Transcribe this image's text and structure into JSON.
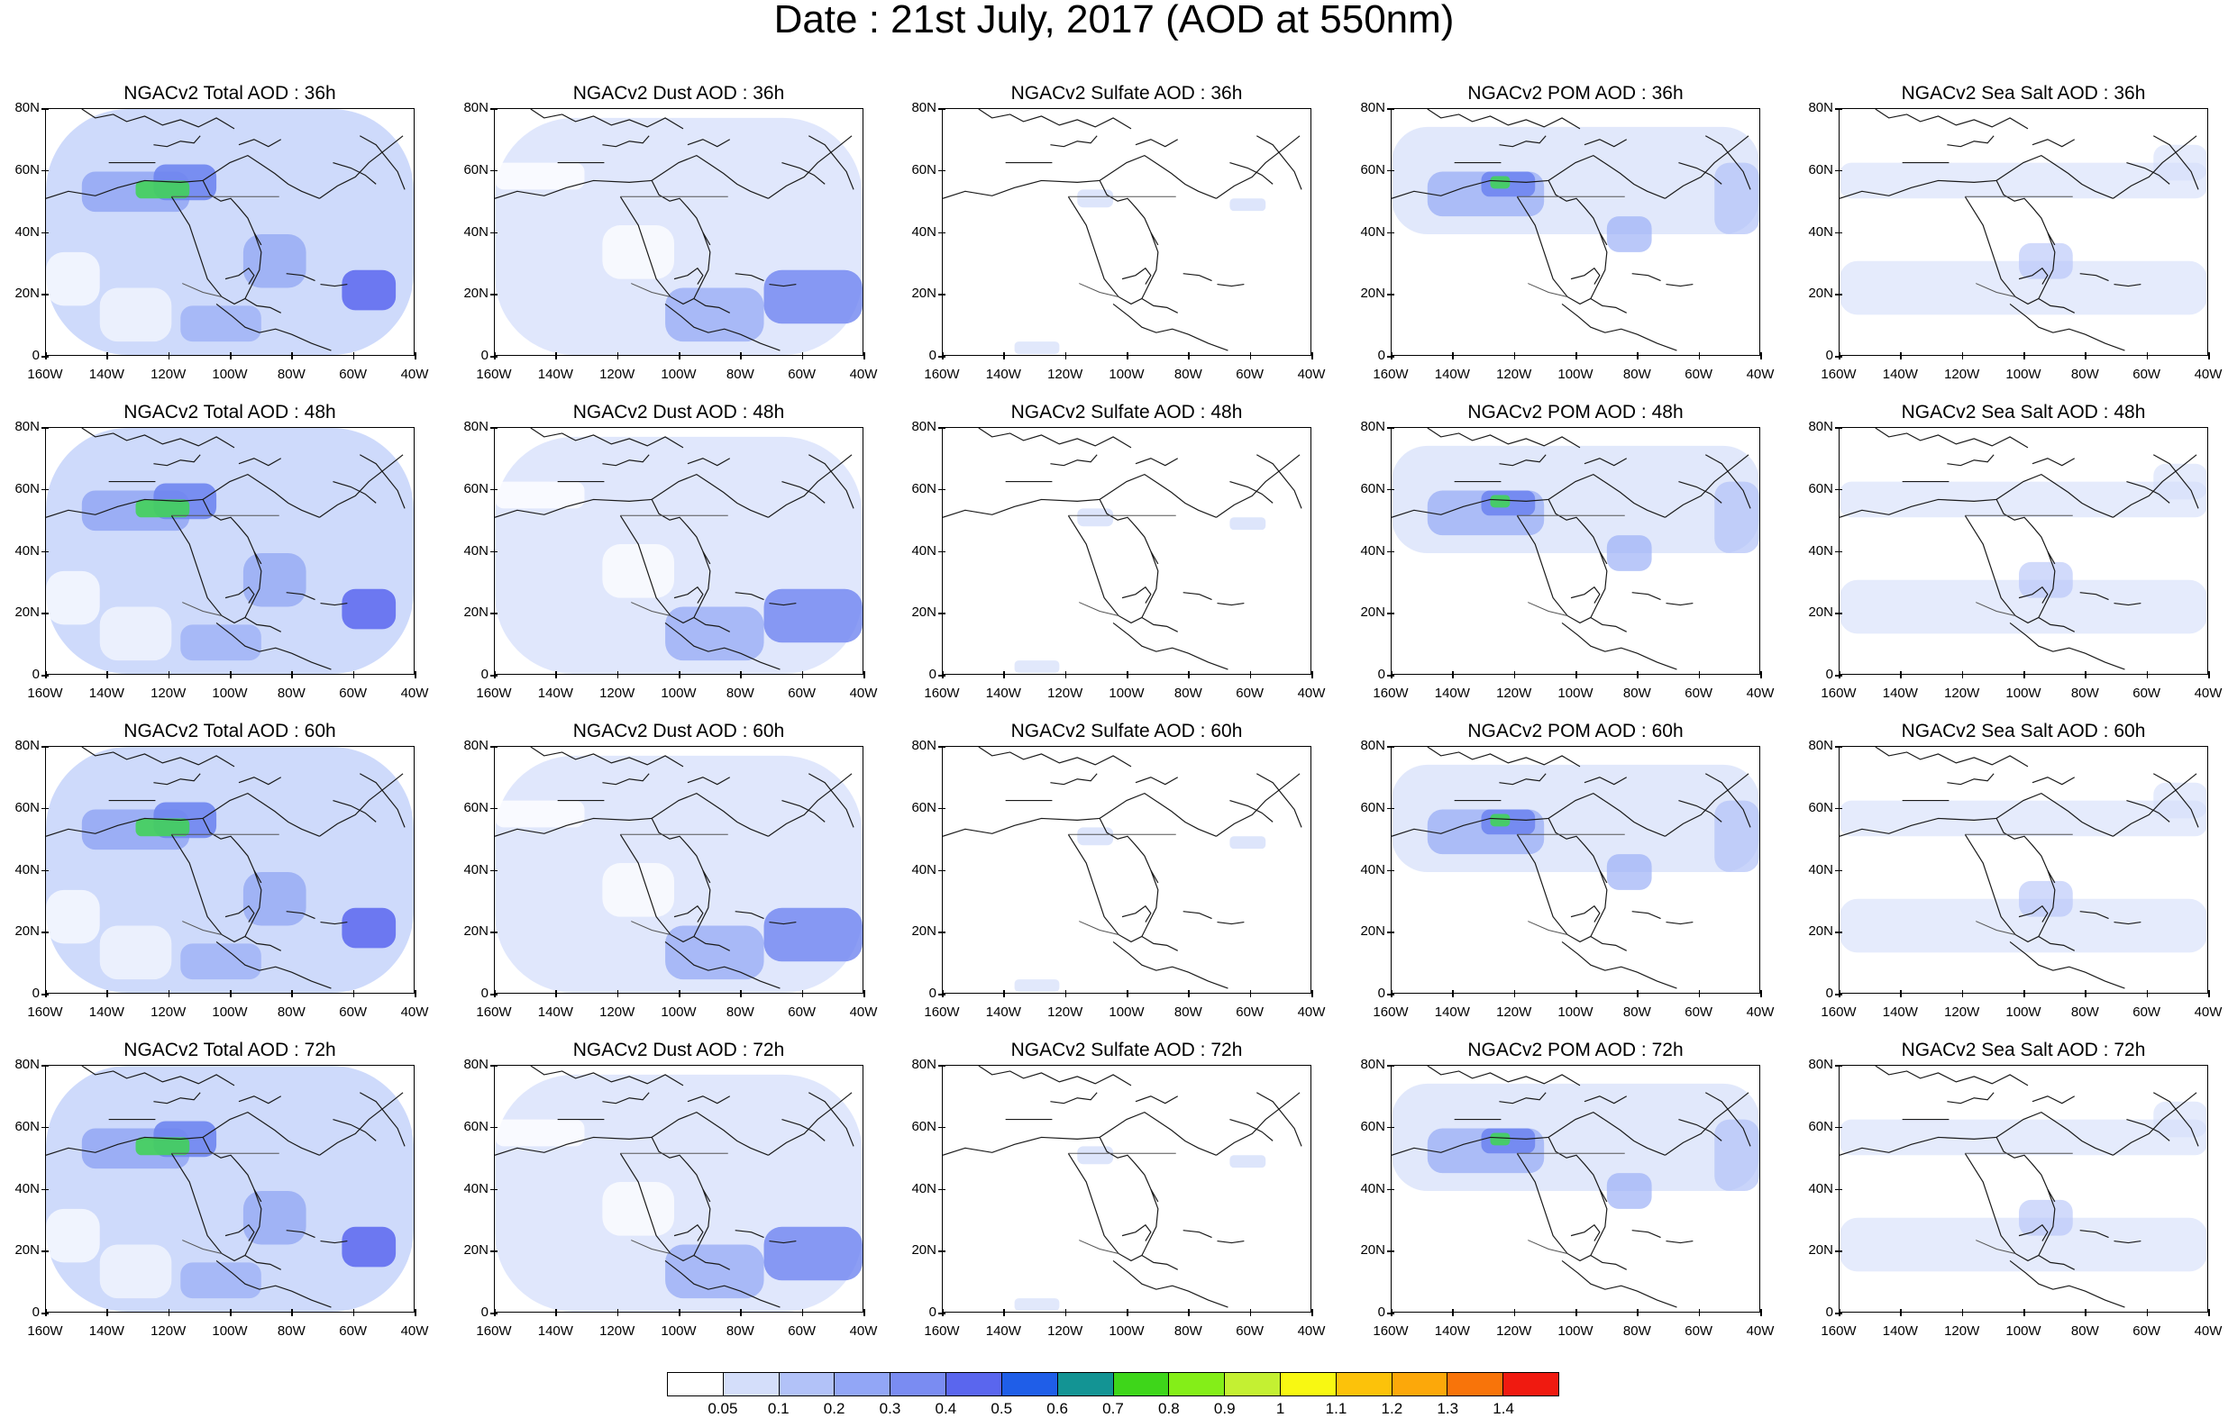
{
  "title": "Date : 21st July, 2017 (AOD at 550nm)",
  "lat_labels": [
    "80N",
    "60N",
    "40N",
    "20N",
    "0"
  ],
  "lon_labels": [
    "160W",
    "140W",
    "120W",
    "100W",
    "80W",
    "60W",
    "40W"
  ],
  "rows": [
    {
      "hour": "36h",
      "titles": [
        "NGACv2 Total AOD : 36h",
        "NGACv2 Dust AOD : 36h",
        "NGACv2 Sulfate AOD : 36h",
        "NGACv2 POM AOD : 36h",
        "NGACv2 Sea Salt AOD : 36h"
      ]
    },
    {
      "hour": "48h",
      "titles": [
        "NGACv2 Total AOD : 48h",
        "NGACv2 Dust AOD : 48h",
        "NGACv2 Sulfate AOD : 48h",
        "NGACv2 POM AOD : 48h",
        "NGACv2 Sea Salt AOD : 48h"
      ]
    },
    {
      "hour": "60h",
      "titles": [
        "NGACv2 Total AOD : 60h",
        "NGACv2 Dust AOD : 60h",
        "NGACv2 Sulfate AOD : 60h",
        "NGACv2 POM AOD : 60h",
        "NGACv2 Sea Salt AOD : 60h"
      ]
    },
    {
      "hour": "72h",
      "titles": [
        "NGACv2 Total AOD : 72h",
        "NGACv2 Dust AOD : 72h",
        "NGACv2 Sulfate AOD : 72h",
        "NGACv2 POM AOD : 72h",
        "NGACv2 Sea Salt  AOD : 72h"
      ]
    }
  ],
  "colorbar": {
    "labels": [
      "0.05",
      "0.1",
      "0.2",
      "0.3",
      "0.4",
      "0.5",
      "0.6",
      "0.7",
      "0.8",
      "0.9",
      "1",
      "1.1",
      "1.2",
      "1.3",
      "1.4"
    ],
    "colors": [
      "#ffffff",
      "#d4defa",
      "#b2c2f8",
      "#92a6f6",
      "#7a8cf2",
      "#5a66ee",
      "#1f5ee8",
      "#139494",
      "#3ed61a",
      "#84ee18",
      "#c4f032",
      "#f8f812",
      "#fcc20a",
      "#fca80a",
      "#f8740a",
      "#f01a10"
    ]
  }
}
